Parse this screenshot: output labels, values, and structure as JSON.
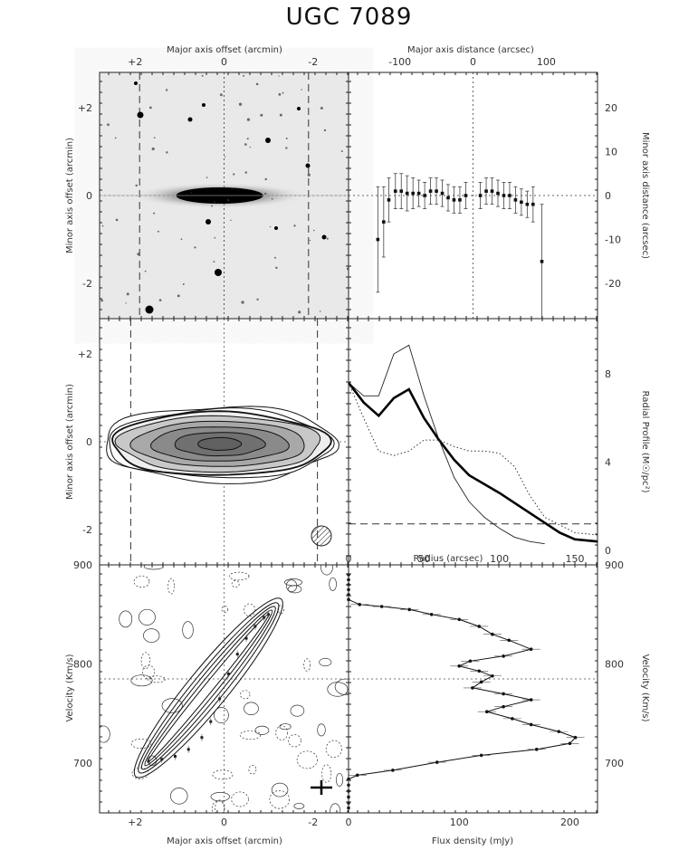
{
  "title": "UGC 7089",
  "chart_data": [
    {
      "id": "optical_image",
      "type": "image",
      "xlabel_top": "Major axis offset (arcmin)",
      "ylabel": "Minor axis offset (arcmin)",
      "xticks": [
        "+2",
        "0",
        "-2"
      ],
      "yticks": [
        "+2",
        "0",
        "-2"
      ],
      "xlim": [
        2.8,
        -2.8
      ],
      "ylim": [
        -2.8,
        2.8
      ]
    },
    {
      "id": "position_profile",
      "type": "scatter",
      "xlabel_top": "Major axis distance (arcsec)",
      "ylabel": "Minor axis distance (arcsec)",
      "xticks": [
        "-100",
        "0",
        "100"
      ],
      "yticks": [
        "20",
        "10",
        "0",
        "-10",
        "-20"
      ],
      "xlim": [
        -170,
        170
      ],
      "ylim": [
        -28,
        28
      ],
      "points": [
        {
          "x": -130,
          "y": -10,
          "err": 12
        },
        {
          "x": -122,
          "y": -6,
          "err": 8
        },
        {
          "x": -115,
          "y": -1,
          "err": 5
        },
        {
          "x": -106,
          "y": 1,
          "err": 4
        },
        {
          "x": -98,
          "y": 1,
          "err": 4
        },
        {
          "x": -90,
          "y": 0.5,
          "err": 4
        },
        {
          "x": -82,
          "y": 0.5,
          "err": 3.5
        },
        {
          "x": -74,
          "y": 0.5,
          "err": 3
        },
        {
          "x": -66,
          "y": 0,
          "err": 3
        },
        {
          "x": -58,
          "y": 1,
          "err": 3
        },
        {
          "x": -50,
          "y": 1,
          "err": 3
        },
        {
          "x": -42,
          "y": 0.5,
          "err": 3
        },
        {
          "x": -34,
          "y": -0.5,
          "err": 3
        },
        {
          "x": -26,
          "y": -1,
          "err": 3
        },
        {
          "x": -18,
          "y": -1,
          "err": 3
        },
        {
          "x": -10,
          "y": 0,
          "err": 3
        },
        {
          "x": 10,
          "y": 0,
          "err": 3
        },
        {
          "x": 18,
          "y": 1,
          "err": 3
        },
        {
          "x": 26,
          "y": 1,
          "err": 3
        },
        {
          "x": 34,
          "y": 0.5,
          "err": 3
        },
        {
          "x": 42,
          "y": 0,
          "err": 3
        },
        {
          "x": 50,
          "y": 0,
          "err": 3
        },
        {
          "x": 58,
          "y": -1,
          "err": 3
        },
        {
          "x": 66,
          "y": -1.5,
          "err": 3
        },
        {
          "x": 74,
          "y": -2,
          "err": 3
        },
        {
          "x": 82,
          "y": -2,
          "err": 4
        },
        {
          "x": 94,
          "y": -15,
          "err": 13
        }
      ]
    },
    {
      "id": "hi_map",
      "type": "contour",
      "ylabel": "Minor axis offset (arcmin)",
      "yticks": [
        "+2",
        "0",
        "-2"
      ],
      "xlim": [
        2.8,
        -2.8
      ],
      "ylim": [
        -2.8,
        2.8
      ]
    },
    {
      "id": "radial_profile",
      "type": "line",
      "xlabel": "Radius (arcsec)",
      "ylabel": "Radial Profile (M☉/pc²)",
      "xticks": [
        "0",
        "50",
        "100",
        "150"
      ],
      "yticks": [
        "0",
        "4",
        "8"
      ],
      "xlim": [
        0,
        165
      ],
      "ylim": [
        0,
        10.5
      ],
      "series": [
        {
          "style": "thick",
          "points": [
            [
              0,
              7.6
            ],
            [
              10,
              6.7
            ],
            [
              20,
              6.1
            ],
            [
              30,
              6.9
            ],
            [
              40,
              7.3
            ],
            [
              50,
              6.0
            ],
            [
              60,
              5.0
            ],
            [
              70,
              4.1
            ],
            [
              80,
              3.4
            ],
            [
              100,
              2.6
            ],
            [
              120,
              1.7
            ],
            [
              140,
              0.8
            ],
            [
              150,
              0.5
            ],
            [
              165,
              0.4
            ]
          ]
        },
        {
          "style": "thin",
          "points": [
            [
              0,
              7.6
            ],
            [
              10,
              7.0
            ],
            [
              20,
              7.0
            ],
            [
              30,
              8.9
            ],
            [
              40,
              9.3
            ],
            [
              50,
              7.0
            ],
            [
              60,
              5.0
            ],
            [
              70,
              3.3
            ],
            [
              80,
              2.2
            ],
            [
              90,
              1.5
            ],
            [
              100,
              1.0
            ],
            [
              110,
              0.6
            ],
            [
              120,
              0.4
            ],
            [
              130,
              0.3
            ]
          ]
        },
        {
          "style": "dotted",
          "points": [
            [
              0,
              7.6
            ],
            [
              10,
              6.0
            ],
            [
              20,
              4.5
            ],
            [
              30,
              4.3
            ],
            [
              40,
              4.5
            ],
            [
              50,
              5.0
            ],
            [
              60,
              5.0
            ],
            [
              70,
              4.7
            ],
            [
              80,
              4.5
            ],
            [
              90,
              4.5
            ],
            [
              100,
              4.4
            ],
            [
              110,
              3.8
            ],
            [
              120,
              2.5
            ],
            [
              130,
              1.5
            ],
            [
              150,
              0.8
            ],
            [
              165,
              0.7
            ]
          ]
        },
        {
          "style": "dashed",
          "points": [
            [
              0,
              1.2
            ],
            [
              165,
              1.2
            ]
          ]
        }
      ]
    },
    {
      "id": "pv_diagram",
      "type": "contour",
      "xlabel": "Major axis offset (arcmin)",
      "ylabel": "Velocity (Km/s)",
      "xticks": [
        "+2",
        "0",
        "-2"
      ],
      "yticks": [
        "900",
        "800",
        "700"
      ],
      "xlim": [
        2.8,
        -2.8
      ],
      "ylim": [
        650,
        900
      ],
      "rotation_curve": [
        [
          1.7,
          702
        ],
        [
          1.4,
          704
        ],
        [
          1.1,
          707
        ],
        [
          0.8,
          714
        ],
        [
          0.5,
          726
        ],
        [
          0.3,
          742
        ],
        [
          0.1,
          765
        ],
        [
          -0.1,
          790
        ],
        [
          -0.3,
          810
        ],
        [
          -0.5,
          826
        ],
        [
          -0.7,
          838
        ],
        [
          -0.9,
          847
        ],
        [
          -1.0,
          850
        ]
      ]
    },
    {
      "id": "global_profile",
      "type": "line",
      "xlabel": "Flux density (mJy)",
      "ylabel": "Velocity (Km/s)",
      "xticks": [
        "0",
        "100",
        "200"
      ],
      "yticks": [
        "900",
        "800",
        "700"
      ],
      "xlim": [
        0,
        225
      ],
      "ylim": [
        650,
        900
      ],
      "points": [
        [
          0,
          890
        ],
        [
          0,
          885
        ],
        [
          0,
          880
        ],
        [
          0,
          875
        ],
        [
          0,
          870
        ],
        [
          0,
          865
        ],
        [
          10,
          860
        ],
        [
          30,
          858
        ],
        [
          55,
          855
        ],
        [
          75,
          850
        ],
        [
          100,
          845
        ],
        [
          118,
          838
        ],
        [
          130,
          830
        ],
        [
          145,
          824
        ],
        [
          165,
          815
        ],
        [
          140,
          808
        ],
        [
          110,
          803
        ],
        [
          100,
          798
        ],
        [
          118,
          793
        ],
        [
          130,
          788
        ],
        [
          120,
          782
        ],
        [
          112,
          776
        ],
        [
          140,
          770
        ],
        [
          165,
          764
        ],
        [
          140,
          757
        ],
        [
          125,
          752
        ],
        [
          148,
          745
        ],
        [
          165,
          739
        ],
        [
          190,
          732
        ],
        [
          205,
          726
        ],
        [
          200,
          720
        ],
        [
          170,
          714
        ],
        [
          120,
          708
        ],
        [
          80,
          701
        ],
        [
          40,
          693
        ],
        [
          8,
          688
        ],
        [
          0,
          684
        ],
        [
          0,
          678
        ],
        [
          0,
          672
        ],
        [
          0,
          666
        ],
        [
          0,
          660
        ],
        [
          0,
          655
        ]
      ],
      "hline": 785
    }
  ]
}
